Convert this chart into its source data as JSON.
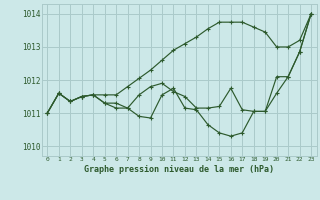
{
  "title": "Graphe pression niveau de la mer (hPa)",
  "background_color": "#cce8e8",
  "grid_color": "#aacaca",
  "line_color": "#2d5a2d",
  "xlim": [
    -0.5,
    23.5
  ],
  "ylim": [
    1009.7,
    1014.3
  ],
  "yticks": [
    1010,
    1011,
    1012,
    1013,
    1014
  ],
  "xticks": [
    0,
    1,
    2,
    3,
    4,
    5,
    6,
    7,
    8,
    9,
    10,
    11,
    12,
    13,
    14,
    15,
    16,
    17,
    18,
    19,
    20,
    21,
    22,
    23
  ],
  "series": [
    {
      "y": [
        1011.0,
        1011.6,
        1011.35,
        1011.5,
        1011.55,
        1011.3,
        1011.15,
        1011.15,
        1011.55,
        1011.8,
        1011.9,
        1011.65,
        1011.5,
        1011.15,
        1011.15,
        1011.2,
        1011.75,
        1011.1,
        1011.05,
        1011.05,
        1011.6,
        1012.1,
        1012.85,
        1014.0
      ],
      "marker": "+"
    },
    {
      "y": [
        1011.0,
        1011.6,
        1011.35,
        1011.5,
        1011.55,
        1011.3,
        1011.3,
        1011.15,
        1010.9,
        1010.85,
        1011.55,
        1011.75,
        1011.15,
        1011.1,
        1010.65,
        1010.4,
        1010.3,
        1010.4,
        1011.05,
        1011.05,
        1012.1,
        1012.1,
        1012.85,
        1014.0
      ],
      "marker": "+"
    },
    {
      "y": [
        1011.0,
        1011.6,
        1011.35,
        1011.5,
        1011.55,
        1011.55,
        1011.55,
        1011.8,
        1012.05,
        1012.3,
        1012.6,
        1012.9,
        1013.1,
        1013.3,
        1013.55,
        1013.75,
        1013.75,
        1013.75,
        1013.6,
        1013.45,
        1013.0,
        1013.0,
        1013.2,
        1014.0
      ],
      "marker": "+"
    }
  ]
}
